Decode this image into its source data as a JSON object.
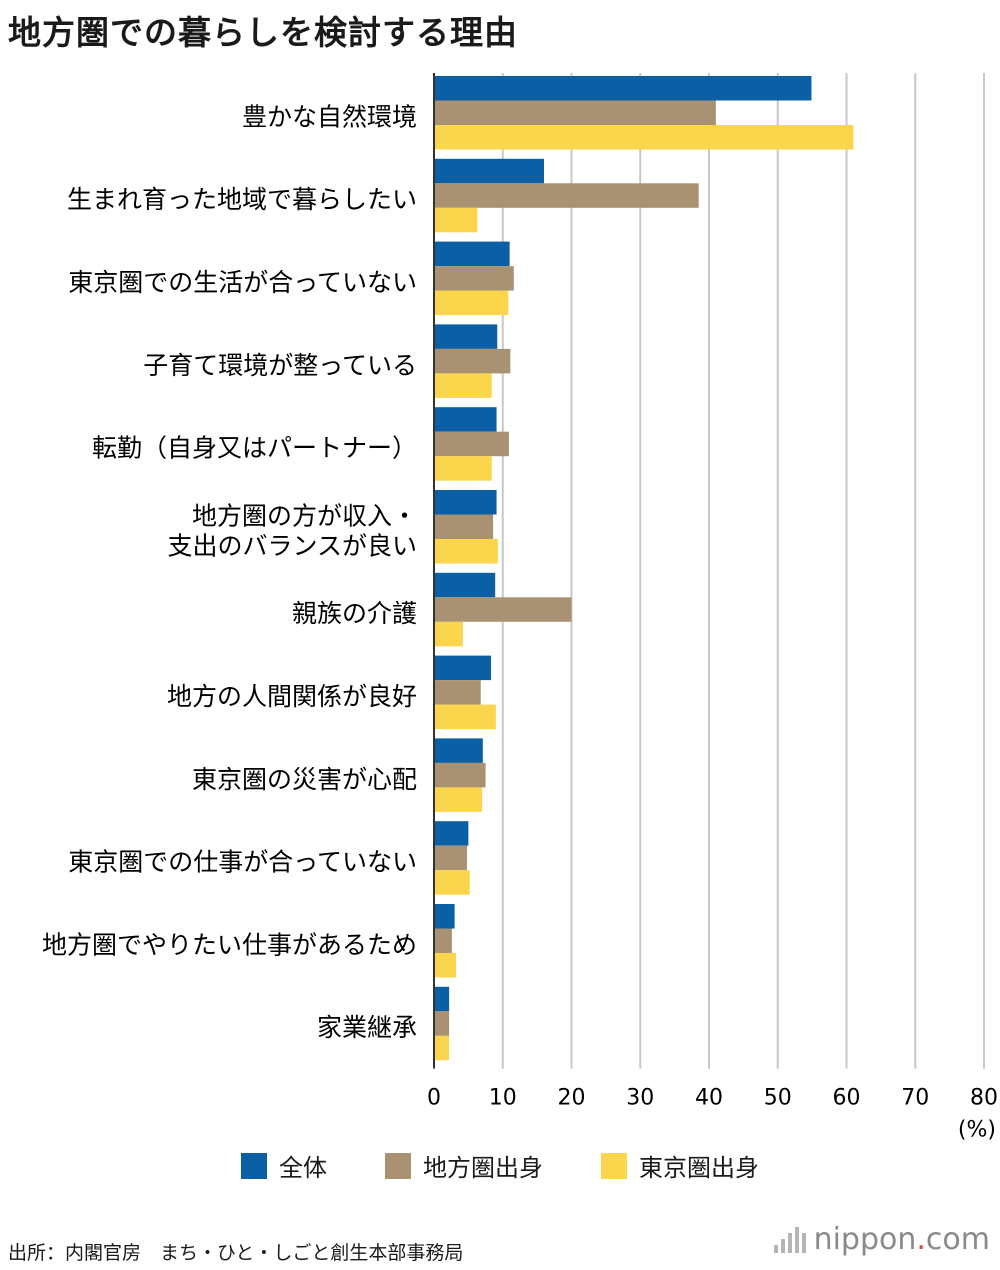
{
  "chart_data": {
    "type": "bar",
    "orientation": "horizontal",
    "title": "地方圏での暮らしを検討する理由",
    "unit_label": "(%)",
    "categories": [
      "豊かな自然環境",
      "生まれ育った地域で暮らしたい",
      "東京圏での生活が合っていない",
      "子育て環境が整っている",
      "転勤（自身又はパートナー）",
      "地方圏の方が収入・\n支出のバランスが良い",
      "親族の介護",
      "地方の人間関係が良好",
      "東京圏の災害が心配",
      "東京圏での仕事が合っていない",
      "地方圏でやりたい仕事があるため",
      "家業継承"
    ],
    "series": [
      {
        "name": "全体",
        "color": "#0b5fa5",
        "values": [
          54.9,
          16.0,
          11.0,
          9.2,
          9.1,
          9.1,
          8.9,
          8.3,
          7.1,
          5.0,
          3.0,
          2.2
        ]
      },
      {
        "name": "地方圏出身",
        "color": "#a99271",
        "values": [
          41.0,
          38.5,
          11.6,
          11.1,
          10.9,
          8.6,
          20.0,
          6.8,
          7.5,
          4.8,
          2.6,
          2.2
        ]
      },
      {
        "name": "東京圏出身",
        "color": "#fbd54b",
        "values": [
          61.0,
          6.3,
          10.8,
          8.4,
          8.4,
          9.3,
          4.2,
          9.0,
          7.0,
          5.2,
          3.2,
          2.2
        ]
      }
    ],
    "xlim": [
      0,
      80
    ],
    "xticks": [
      0,
      10,
      20,
      30,
      40,
      50,
      60,
      70,
      80
    ],
    "grid": true,
    "legend_position": "bottom"
  },
  "source": "出所：内閣官房　まち・ひと・しごと創生本部事務局",
  "brand": {
    "name": "nippon",
    "dot": ".",
    "suffix": "com"
  }
}
